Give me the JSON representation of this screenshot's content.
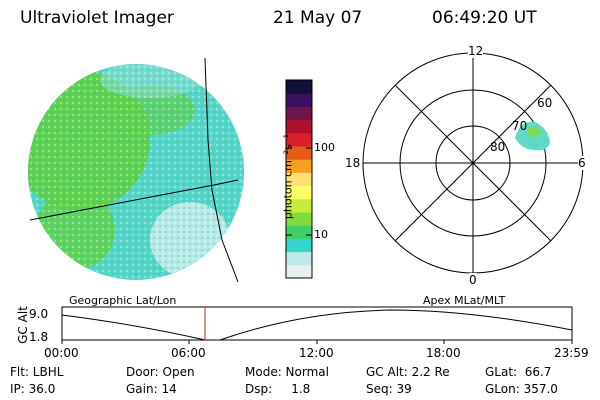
{
  "header": {
    "instrument": "Ultraviolet Imager",
    "date": "21 May 07",
    "time": "06:49:20 UT"
  },
  "colorbar": {
    "unit_label": "photon cm⁻²s⁻¹",
    "tick_100": "100",
    "tick_10": "10",
    "colors": [
      "#e8f0f0",
      "#bfe8e8",
      "#33d6c8",
      "#3ccf6a",
      "#7fdc3a",
      "#c8ec3c",
      "#ffff66",
      "#ffe070",
      "#f5a020",
      "#e85a18",
      "#d8202a",
      "#b01030",
      "#701548",
      "#3a1060",
      "#10103a"
    ]
  },
  "geographic_panel": {
    "colors": {
      "background_fill": "#56d6c8",
      "green_region": "#5fd24a",
      "light_region": "#c8ecec"
    }
  },
  "polar_plot": {
    "mlt_12": "12",
    "mlt_18": "18",
    "mlt_6": "6",
    "mlt_0": "0",
    "lat_60": "60",
    "lat_70": "70",
    "lat_80": "80",
    "oval_color": "#62d8c8"
  },
  "timeline": {
    "ylabel": "GC Alt",
    "y_top": "9.0",
    "y_bottom": "1.8",
    "left_title": "Geographic Lat/Lon",
    "right_title": "Apex MLat/MLT",
    "ticks": [
      "00:00",
      "06:00",
      "12:00",
      "18:00",
      "23:59"
    ],
    "marker_color": "#b02020"
  },
  "status": {
    "flt": "Flt: LBHL",
    "ip": "IP: 36.0",
    "door": "Door: Open",
    "gain": "Gain: 14",
    "mode": "Mode: Normal",
    "dsp": "Dsp:     1.8",
    "gc_alt": "GC Alt: 2.2 Re",
    "seq": "Seq: 39",
    "glat": "GLat:  66.7",
    "glon": "GLon: 357.0"
  }
}
